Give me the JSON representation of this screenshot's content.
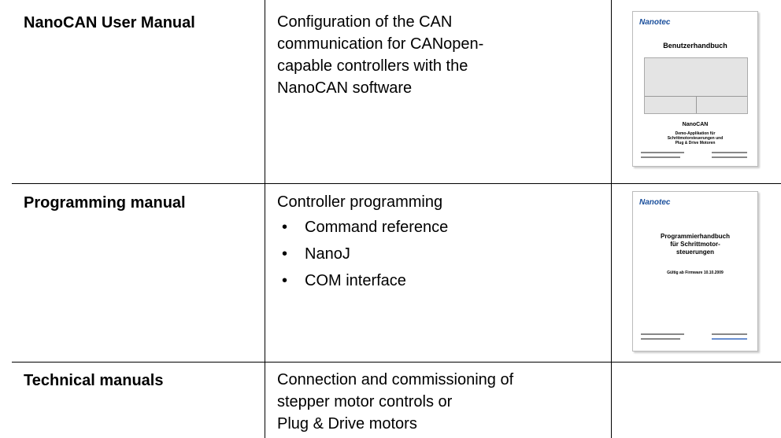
{
  "table": {
    "rows": [
      {
        "title": "NanoCAN User Manual",
        "text": [
          "Configuration of the CAN",
          "communication for CANopen-",
          "capable controllers with the",
          "NanoCAN software"
        ],
        "thumbnail": {
          "logo": "Nanotec",
          "heading": "Benutzerhandbuch",
          "product": "NanoCAN",
          "subtitle": [
            "Demo-Applikation für",
            "Schrittmotorsteuerungen und",
            "Plug & Drive Motoren"
          ]
        }
      },
      {
        "title": "Programming manual",
        "text": [
          "Controller programming"
        ],
        "bullets": [
          "Command reference",
          "NanoJ",
          "COM interface"
        ],
        "thumbnail": {
          "logo": "Nanotec",
          "heading": [
            "Programmierhandbuch",
            "für Schrittmotor-",
            "steuerungen"
          ],
          "note": "Gültig ab Firmware 10.10.2009"
        }
      },
      {
        "title": "Technical manuals",
        "text": [
          "Connection and commissioning of",
          "stepper motor controls or",
          "Plug & Drive motors"
        ]
      }
    ]
  }
}
